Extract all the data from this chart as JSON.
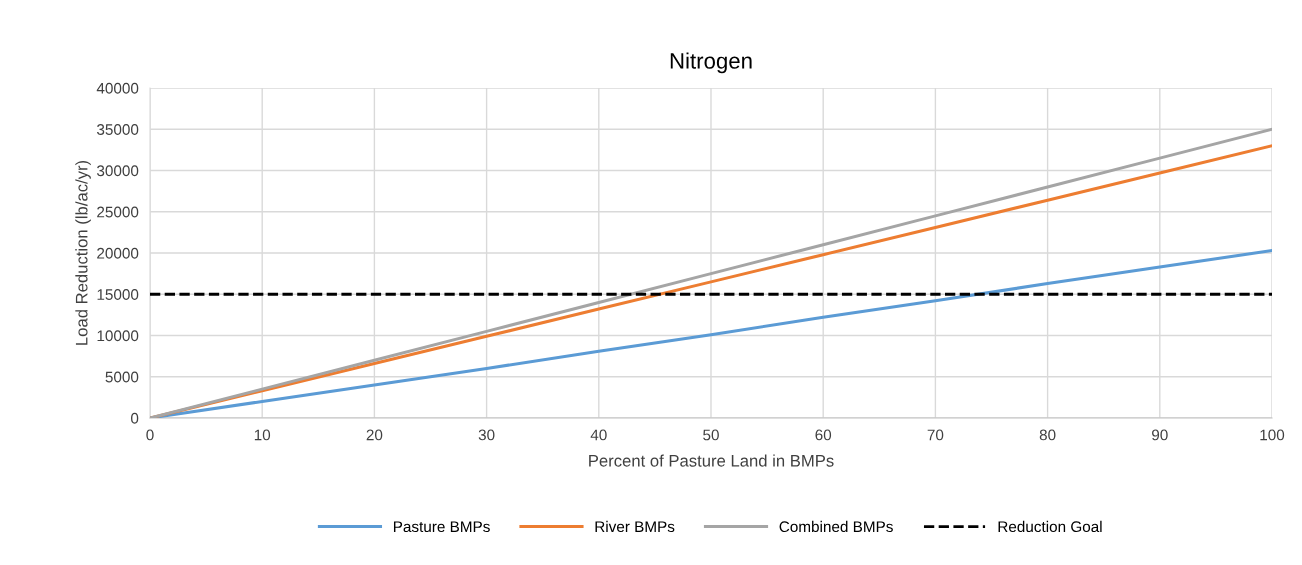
{
  "chart_data": {
    "type": "line",
    "title": "Nitrogen",
    "xlabel": "Percent of Pasture Land in BMPs",
    "ylabel": "Load Reduction (lb/ac/yr)",
    "x": [
      0,
      10,
      20,
      30,
      40,
      50,
      60,
      70,
      80,
      90,
      100
    ],
    "series": [
      {
        "name": "Pasture BMPs",
        "color": "#5b9bd5",
        "values": [
          0,
          2000,
          4000,
          6000,
          8100,
          10100,
          12200,
          14200,
          16300,
          18300,
          20300
        ]
      },
      {
        "name": "River BMPs",
        "color": "#ed7d31",
        "values": [
          0,
          3300,
          6600,
          9900,
          13200,
          16500,
          19800,
          23100,
          26400,
          29700,
          33000
        ]
      },
      {
        "name": "Combined BMPs",
        "color": "#a5a5a5",
        "values": [
          0,
          3500,
          7000,
          10500,
          14000,
          17500,
          21000,
          24500,
          28000,
          31500,
          35000
        ]
      }
    ],
    "ref_lines": [
      {
        "axis": "y",
        "value": 15000,
        "label": "Reduction Goal",
        "color": "#000000",
        "line_style": "dashed"
      }
    ],
    "xlim": [
      0,
      100
    ],
    "xticks": [
      0,
      10,
      20,
      30,
      40,
      50,
      60,
      70,
      80,
      90,
      100
    ],
    "ylim": [
      0,
      40000
    ],
    "yticks": [
      0,
      5000,
      10000,
      15000,
      20000,
      25000,
      30000,
      35000,
      40000
    ],
    "grid": true,
    "legend": "bottom",
    "marker": "none",
    "line_style": "solid"
  }
}
